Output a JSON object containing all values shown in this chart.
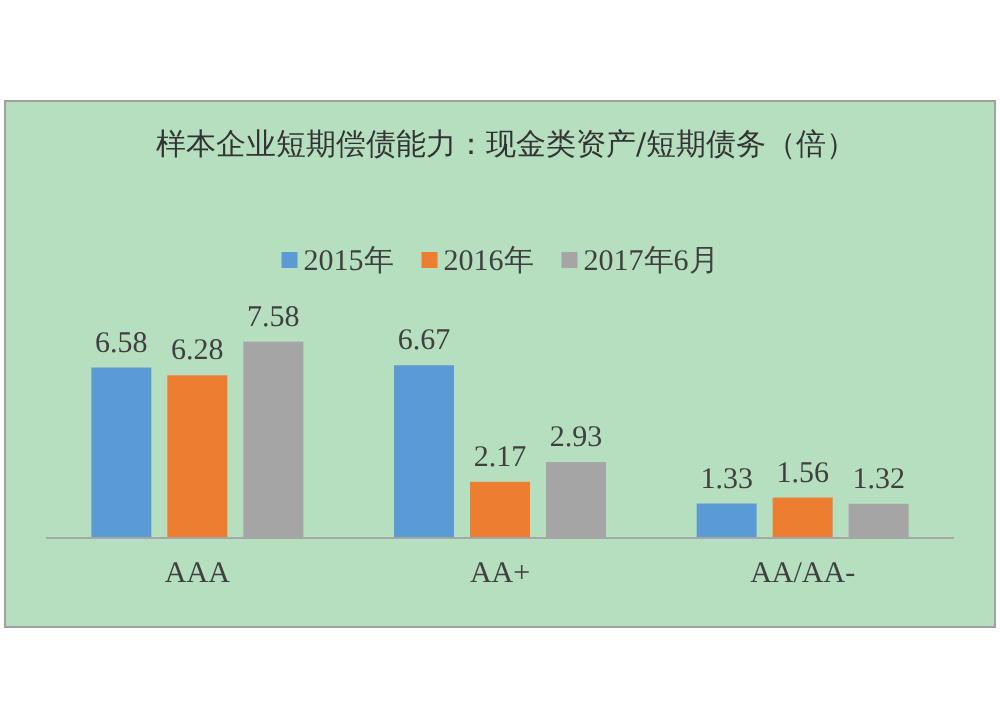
{
  "chart_data": {
    "type": "bar",
    "title": "样本企业短期偿债能力：现金类资产/短期债务（倍）",
    "categories": [
      "AAA",
      "AA+",
      "AA/AA-"
    ],
    "series": [
      {
        "name": "2015年",
        "color": "#5b9bd5",
        "values": [
          6.58,
          6.67,
          1.33
        ]
      },
      {
        "name": "2016年",
        "color": "#ed7d31",
        "values": [
          6.28,
          2.17,
          1.56
        ]
      },
      {
        "name": "2017年6月",
        "color": "#a5a5a5",
        "values": [
          7.58,
          2.93,
          1.32
        ]
      }
    ],
    "data_labels": true,
    "legend": "top",
    "grid": false
  }
}
